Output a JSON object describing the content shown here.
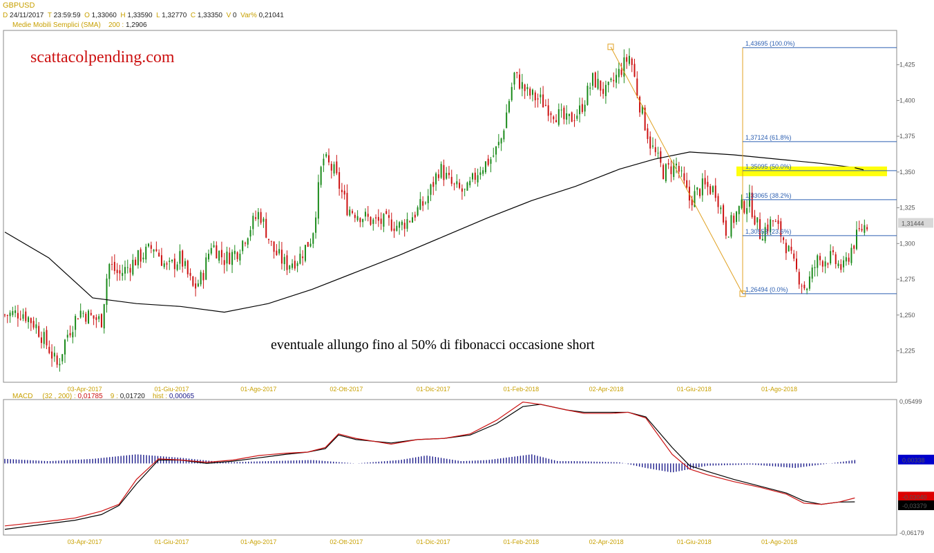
{
  "header": {
    "symbol": "GBPUSD",
    "date_key": "D",
    "date": "24/11/2017",
    "time_key": "T",
    "time": "23:59:59",
    "open_key": "O",
    "open": "1,33060",
    "high_key": "H",
    "high": "1,33590",
    "low_key": "L",
    "low": "1,32770",
    "close_key": "C",
    "close": "1,33350",
    "vol_key": "V",
    "vol": "0",
    "var_key": "Var%",
    "var": "0,21041",
    "sma_label": "Medie Mobili Semplici (SMA)",
    "sma_period": "200 :",
    "sma_value": "1,2906"
  },
  "brand": "scattacolpending.com",
  "annotation": "eventuale allungo fino al 50% di fibonacci occasione short",
  "macd_header": {
    "name": "MACD",
    "params": "(32 , 200) :",
    "macd_value": "0,01785",
    "signal_key": "9 :",
    "signal_value": "0,01720",
    "hist_key": "hist :",
    "hist_value": "0,00065"
  },
  "colors": {
    "up_candle": "#1a8a1a",
    "down_candle": "#cc1111",
    "sma_line": "#000000",
    "fib_line": "#2a5db0",
    "fib_frame": "#e0a020",
    "highlight": "#ffff00",
    "macd_line": "#000000",
    "signal_line": "#cc1111",
    "histogram": "#1a1a8a"
  },
  "chart_data": [
    {
      "type": "candlestick",
      "title": "GBPUSD",
      "x_tick_labels": [
        "03-Apr-2017",
        "01-Giu-2017",
        "01-Ago-2017",
        "02-Ott-2017",
        "01-Dic-2017",
        "01-Feb-2018",
        "02-Apr-2018",
        "01-Giu-2018",
        "01-Ago-2018"
      ],
      "y_tick_labels": [
        "1,425",
        "1,400",
        "1,375",
        "1,350",
        "1,325",
        "1,300",
        "1,275",
        "1,250",
        "1,225"
      ],
      "y_ticks": [
        1.425,
        1.4,
        1.375,
        1.35,
        1.325,
        1.3,
        1.275,
        1.25,
        1.225
      ],
      "ylim": [
        1.203,
        1.449
      ],
      "xlim": [
        0,
        1
      ],
      "last_price_label": "1,31444",
      "last_price": 1.31444,
      "close_path": [
        [
          0.0,
          1.25
        ],
        [
          0.02,
          1.252
        ],
        [
          0.035,
          1.243
        ],
        [
          0.05,
          1.227
        ],
        [
          0.06,
          1.214
        ],
        [
          0.07,
          1.235
        ],
        [
          0.085,
          1.253
        ],
        [
          0.1,
          1.248
        ],
        [
          0.11,
          1.246
        ],
        [
          0.118,
          1.286
        ],
        [
          0.13,
          1.278
        ],
        [
          0.15,
          1.289
        ],
        [
          0.17,
          1.298
        ],
        [
          0.185,
          1.282
        ],
        [
          0.2,
          1.29
        ],
        [
          0.215,
          1.268
        ],
        [
          0.225,
          1.277
        ],
        [
          0.235,
          1.3
        ],
        [
          0.25,
          1.289
        ],
        [
          0.265,
          1.295
        ],
        [
          0.28,
          1.312
        ],
        [
          0.29,
          1.322
        ],
        [
          0.305,
          1.296
        ],
        [
          0.32,
          1.285
        ],
        [
          0.335,
          1.29
        ],
        [
          0.35,
          1.305
        ],
        [
          0.362,
          1.36
        ],
        [
          0.375,
          1.35
        ],
        [
          0.39,
          1.325
        ],
        [
          0.405,
          1.32
        ],
        [
          0.42,
          1.315
        ],
        [
          0.435,
          1.315
        ],
        [
          0.45,
          1.312
        ],
        [
          0.465,
          1.32
        ],
        [
          0.48,
          1.33
        ],
        [
          0.495,
          1.353
        ],
        [
          0.51,
          1.34
        ],
        [
          0.525,
          1.335
        ],
        [
          0.54,
          1.352
        ],
        [
          0.555,
          1.36
        ],
        [
          0.565,
          1.372
        ],
        [
          0.58,
          1.418
        ],
        [
          0.595,
          1.405
        ],
        [
          0.61,
          1.4
        ],
        [
          0.625,
          1.392
        ],
        [
          0.64,
          1.385
        ],
        [
          0.655,
          1.393
        ],
        [
          0.67,
          1.415
        ],
        [
          0.685,
          1.405
        ],
        [
          0.7,
          1.42
        ],
        [
          0.712,
          1.432
        ],
        [
          0.722,
          1.4
        ],
        [
          0.735,
          1.37
        ],
        [
          0.75,
          1.35
        ],
        [
          0.765,
          1.355
        ],
        [
          0.78,
          1.33
        ],
        [
          0.795,
          1.34
        ],
        [
          0.81,
          1.337
        ],
        [
          0.822,
          1.308
        ],
        [
          0.835,
          1.323
        ],
        [
          0.848,
          1.33
        ],
        [
          0.86,
          1.307
        ],
        [
          0.875,
          1.316
        ],
        [
          0.888,
          1.302
        ],
        [
          0.9,
          1.282
        ],
        [
          0.912,
          1.268
        ],
        [
          0.925,
          1.288
        ],
        [
          0.94,
          1.29
        ],
        [
          0.955,
          1.282
        ],
        [
          0.965,
          1.298
        ],
        [
          0.975,
          1.31
        ],
        [
          0.982,
          1.314
        ]
      ],
      "sma_path": [
        [
          0.0,
          1.308
        ],
        [
          0.05,
          1.29
        ],
        [
          0.1,
          1.262
        ],
        [
          0.15,
          1.258
        ],
        [
          0.2,
          1.256
        ],
        [
          0.25,
          1.252
        ],
        [
          0.3,
          1.258
        ],
        [
          0.35,
          1.268
        ],
        [
          0.4,
          1.28
        ],
        [
          0.45,
          1.292
        ],
        [
          0.5,
          1.305
        ],
        [
          0.55,
          1.318
        ],
        [
          0.6,
          1.33
        ],
        [
          0.65,
          1.34
        ],
        [
          0.7,
          1.352
        ],
        [
          0.74,
          1.359
        ],
        [
          0.78,
          1.364
        ],
        [
          0.83,
          1.362
        ],
        [
          0.88,
          1.359
        ],
        [
          0.93,
          1.356
        ],
        [
          0.968,
          1.353
        ]
      ],
      "fibonacci": {
        "swing_high": 1.43695,
        "swing_low": 1.26494,
        "levels": [
          {
            "label": "1,43695 (100.0%)",
            "value": 1.43695
          },
          {
            "label": "1,37124 (61.8%)",
            "value": 1.37124
          },
          {
            "label": "1,35095 (50.0%)",
            "value": 1.35095
          },
          {
            "label": "1,33065 (38.2%)",
            "value": 1.33065
          },
          {
            "label": "1,30553 (23.6%)",
            "value": 1.30553
          },
          {
            "label": "1,26494 (0.0%)",
            "value": 1.26494
          }
        ],
        "highlighted_level": 1.35095
      },
      "trend_line": [
        [
          0.69,
          1.4375
        ],
        [
          0.828,
          1.2649
        ]
      ]
    },
    {
      "type": "line",
      "title": "MACD",
      "x_tick_labels": [
        "03-Apr-2017",
        "01-Giu-2017",
        "01-Ago-2017",
        "02-Ott-2017",
        "01-Dic-2017",
        "01-Feb-2018",
        "02-Apr-2018",
        "01-Giu-2018",
        "01-Ago-2018"
      ],
      "y_tick_labels": [
        "0,05499",
        "-0,06179"
      ],
      "y_ticks": [
        0.05499,
        -0.06179
      ],
      "ylim": [
        -0.06179,
        0.05499
      ],
      "xlim": [
        0,
        1
      ],
      "value_labels": [
        {
          "label": "0,00338",
          "value": 0.00338,
          "color": "#0000cc"
        },
        {
          "label": "-0,03040",
          "value": -0.0304,
          "color": "#dd0000"
        },
        {
          "label": "-0,03379",
          "value": -0.03379,
          "color": "#000000"
        }
      ],
      "series": [
        {
          "name": "",
          "color": "#000000",
          "points": [
            [
              0.0,
              -0.058
            ],
            [
              0.06,
              -0.052
            ],
            [
              0.08,
              -0.05
            ],
            [
              0.11,
              -0.045
            ],
            [
              0.13,
              -0.037
            ],
            [
              0.15,
              -0.018
            ],
            [
              0.175,
              0.003
            ],
            [
              0.2,
              0.003
            ],
            [
              0.23,
              0.0
            ],
            [
              0.26,
              0.002
            ],
            [
              0.29,
              0.005
            ],
            [
              0.32,
              0.008
            ],
            [
              0.345,
              0.01
            ],
            [
              0.365,
              0.013
            ],
            [
              0.38,
              0.025
            ],
            [
              0.4,
              0.021
            ],
            [
              0.44,
              0.018
            ],
            [
              0.47,
              0.021
            ],
            [
              0.5,
              0.022
            ],
            [
              0.53,
              0.025
            ],
            [
              0.56,
              0.035
            ],
            [
              0.59,
              0.05
            ],
            [
              0.61,
              0.052
            ],
            [
              0.64,
              0.047
            ],
            [
              0.66,
              0.045
            ],
            [
              0.69,
              0.045
            ],
            [
              0.71,
              0.045
            ],
            [
              0.73,
              0.041
            ],
            [
              0.76,
              0.014
            ],
            [
              0.78,
              -0.002
            ],
            [
              0.8,
              -0.007
            ],
            [
              0.83,
              -0.014
            ],
            [
              0.86,
              -0.02
            ],
            [
              0.89,
              -0.026
            ],
            [
              0.91,
              -0.033
            ],
            [
              0.93,
              -0.036
            ],
            [
              0.95,
              -0.034
            ],
            [
              0.968,
              -0.0338
            ]
          ]
        },
        {
          "name": "",
          "color": "#cc1111",
          "points": [
            [
              0.0,
              -0.055
            ],
            [
              0.06,
              -0.05
            ],
            [
              0.08,
              -0.048
            ],
            [
              0.11,
              -0.042
            ],
            [
              0.13,
              -0.036
            ],
            [
              0.15,
              -0.014
            ],
            [
              0.175,
              0.004
            ],
            [
              0.2,
              0.003
            ],
            [
              0.23,
              0.001
            ],
            [
              0.26,
              0.003
            ],
            [
              0.29,
              0.007
            ],
            [
              0.32,
              0.009
            ],
            [
              0.345,
              0.01
            ],
            [
              0.365,
              0.014
            ],
            [
              0.38,
              0.026
            ],
            [
              0.4,
              0.022
            ],
            [
              0.44,
              0.017
            ],
            [
              0.47,
              0.021
            ],
            [
              0.5,
              0.022
            ],
            [
              0.53,
              0.026
            ],
            [
              0.56,
              0.038
            ],
            [
              0.59,
              0.054
            ],
            [
              0.61,
              0.052
            ],
            [
              0.64,
              0.047
            ],
            [
              0.66,
              0.044
            ],
            [
              0.69,
              0.044
            ],
            [
              0.71,
              0.045
            ],
            [
              0.73,
              0.04
            ],
            [
              0.76,
              0.008
            ],
            [
              0.78,
              -0.005
            ],
            [
              0.8,
              -0.01
            ],
            [
              0.83,
              -0.016
            ],
            [
              0.86,
              -0.021
            ],
            [
              0.89,
              -0.027
            ],
            [
              0.91,
              -0.035
            ],
            [
              0.93,
              -0.036
            ],
            [
              0.95,
              -0.034
            ],
            [
              0.968,
              -0.0304
            ]
          ]
        },
        {
          "name": "hist",
          "color": "#1a1a8a",
          "type": "bar",
          "points": [
            [
              0.0,
              0.004
            ],
            [
              0.05,
              0.002
            ],
            [
              0.1,
              0.004
            ],
            [
              0.15,
              0.008
            ],
            [
              0.2,
              0.005
            ],
            [
              0.25,
              0.001
            ],
            [
              0.3,
              0.002
            ],
            [
              0.35,
              0.003
            ],
            [
              0.4,
              0.0
            ],
            [
              0.45,
              0.003
            ],
            [
              0.48,
              0.007
            ],
            [
              0.52,
              0.002
            ],
            [
              0.55,
              0.003
            ],
            [
              0.58,
              0.006
            ],
            [
              0.6,
              0.008
            ],
            [
              0.63,
              0.002
            ],
            [
              0.65,
              0.002
            ],
            [
              0.7,
              0.001
            ],
            [
              0.73,
              -0.004
            ],
            [
              0.76,
              -0.008
            ],
            [
              0.8,
              -0.002
            ],
            [
              0.85,
              -0.001
            ],
            [
              0.9,
              -0.004
            ],
            [
              0.93,
              -0.001
            ],
            [
              0.968,
              0.003
            ]
          ]
        }
      ]
    }
  ]
}
